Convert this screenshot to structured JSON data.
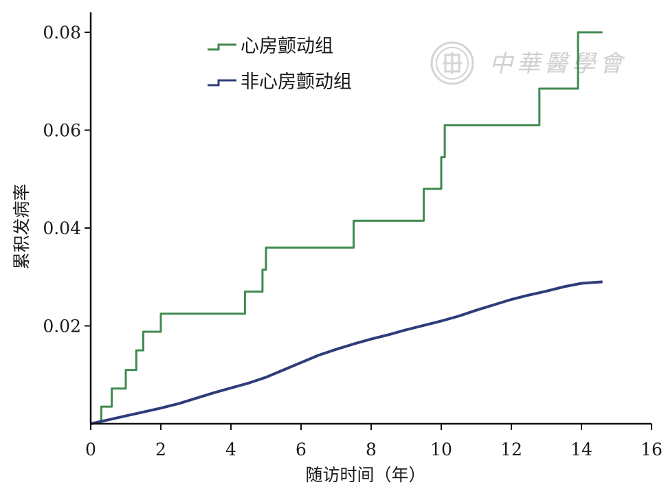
{
  "chart_data": {
    "type": "line",
    "step": true,
    "xlabel": "随访时间（年）",
    "ylabel": "累积发病率",
    "xlim": [
      0,
      16
    ],
    "ylim": [
      0,
      0.08
    ],
    "x_ticks": [
      0,
      2,
      4,
      6,
      8,
      10,
      12,
      14,
      16
    ],
    "y_ticks": [
      0.02,
      0.04,
      0.06,
      0.08
    ],
    "x_tick_labels": [
      "0",
      "2",
      "4",
      "6",
      "8",
      "10",
      "12",
      "14",
      "16"
    ],
    "y_tick_labels": [
      "0.02",
      "0.04",
      "0.06",
      "0.08"
    ],
    "grid": false,
    "legend_position": "top-left",
    "series": [
      {
        "name": "心房颤动组",
        "color": "#3f8a4f",
        "line_style": "step",
        "x": [
          0.3,
          0.3,
          0.6,
          1.0,
          1.3,
          1.5,
          2.0,
          4.4,
          4.9,
          5.0,
          7.5,
          9.5,
          10.0,
          10.1,
          12.8,
          13.9,
          14.6
        ],
        "y": [
          0.0,
          0.0035,
          0.0072,
          0.011,
          0.015,
          0.0188,
          0.0225,
          0.027,
          0.0315,
          0.036,
          0.0415,
          0.048,
          0.0545,
          0.061,
          0.0685,
          0.08,
          0.08
        ]
      },
      {
        "name": "非心房颤动组",
        "color": "#2e3d7a",
        "line_style": "smooth",
        "x": [
          0.0,
          0.5,
          1.0,
          1.5,
          2.0,
          2.5,
          3.0,
          3.5,
          4.0,
          4.5,
          5.0,
          5.5,
          6.0,
          6.5,
          7.0,
          7.5,
          8.0,
          8.5,
          9.0,
          9.5,
          10.0,
          10.5,
          11.0,
          11.5,
          12.0,
          12.5,
          13.0,
          13.5,
          14.0,
          14.6
        ],
        "y": [
          0.0,
          0.0008,
          0.0016,
          0.0024,
          0.0032,
          0.0041,
          0.0052,
          0.0063,
          0.0073,
          0.0083,
          0.0095,
          0.011,
          0.0125,
          0.014,
          0.0152,
          0.0163,
          0.0173,
          0.0182,
          0.0192,
          0.0201,
          0.021,
          0.022,
          0.0232,
          0.0243,
          0.0254,
          0.0263,
          0.0271,
          0.028,
          0.0287,
          0.029
        ]
      }
    ]
  },
  "watermark": {
    "text": "中華醫學會",
    "color": "#d0d0d0",
    "icon": "medical-association-seal-icon"
  }
}
